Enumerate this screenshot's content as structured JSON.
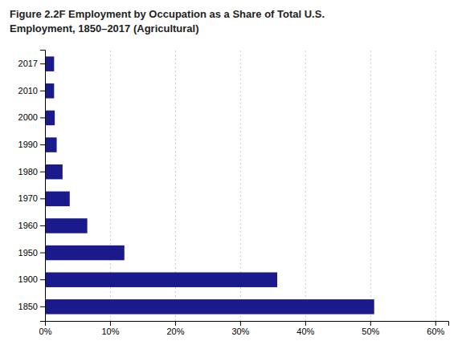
{
  "chart_data": {
    "type": "bar",
    "title": "Figure 2.2F Employment by Occupation as a Share of Total U.S.\nEmployment, 1850–2017 (Agricultural)",
    "orientation": "horizontal",
    "categories": [
      "1850",
      "1900",
      "1950",
      "1960",
      "1970",
      "1980",
      "1990",
      "2000",
      "2010",
      "2017"
    ],
    "values": [
      0.506,
      0.357,
      0.122,
      0.065,
      0.038,
      0.027,
      0.018,
      0.015,
      0.014,
      0.014
    ],
    "color": "#1a1a8c",
    "xlim": [
      0,
      0.62
    ],
    "xticks": [
      {
        "value": 0.0,
        "label": "0%"
      },
      {
        "value": 0.1,
        "label": "10%"
      },
      {
        "value": 0.2,
        "label": "20%"
      },
      {
        "value": 0.3,
        "label": "30%"
      },
      {
        "value": 0.4,
        "label": "40%"
      },
      {
        "value": 0.5,
        "label": "50%"
      },
      {
        "value": 0.6,
        "label": "60%"
      }
    ],
    "grid": true
  }
}
